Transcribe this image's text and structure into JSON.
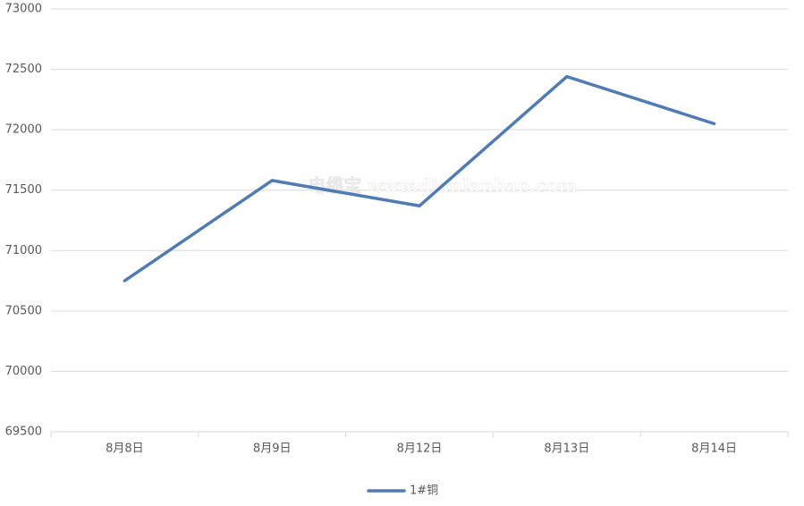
{
  "chart_data": {
    "type": "line",
    "categories": [
      "8月8日",
      "8月9日",
      "8月12日",
      "8月13日",
      "8月14日"
    ],
    "series": [
      {
        "name": "1#铜",
        "color": "#4f7cb5",
        "values": [
          70750,
          71580,
          71370,
          72440,
          72050
        ]
      }
    ],
    "ylim": [
      69500,
      73000
    ],
    "yticks": [
      69500,
      70000,
      70500,
      71000,
      71500,
      72000,
      72500,
      73000
    ],
    "grid": true,
    "legend": "bottom",
    "watermark": "电缆宝 www.dianlanbao.com"
  }
}
